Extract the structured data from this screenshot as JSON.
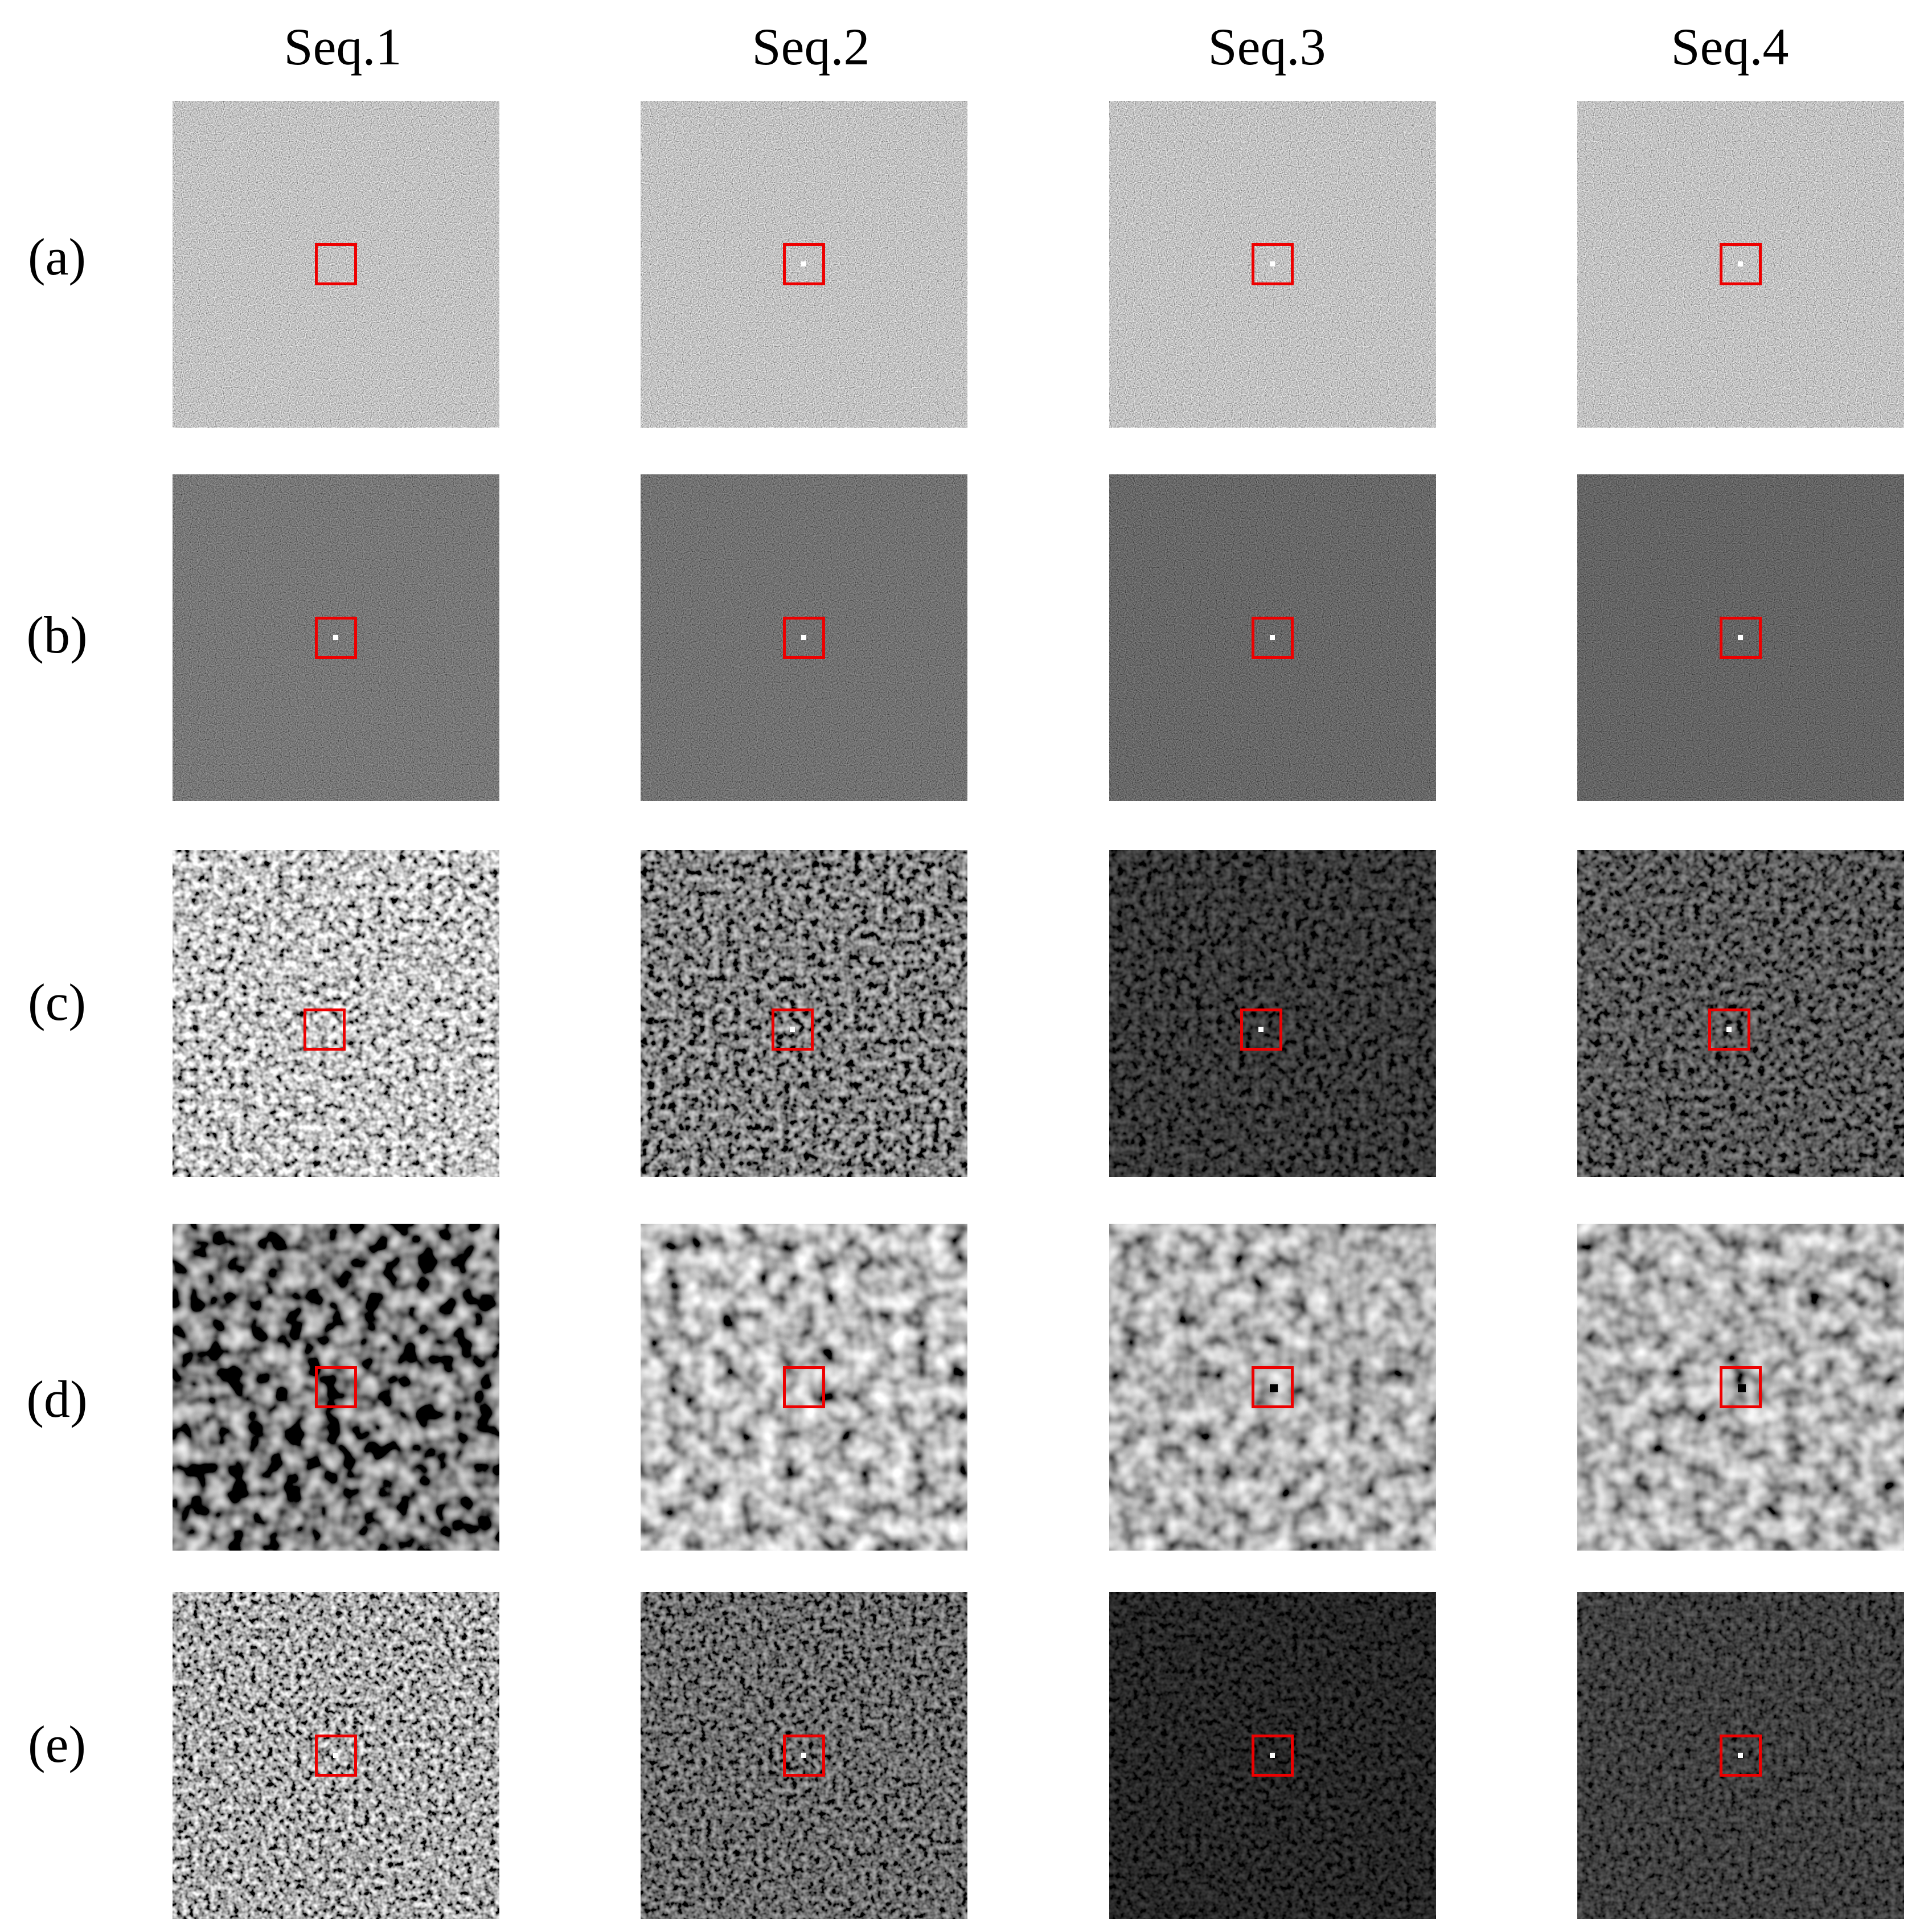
{
  "columns": [
    "Seq.1",
    "Seq.2",
    "Seq.3",
    "Seq.4"
  ],
  "rows": [
    "(a)",
    "(b)",
    "(c)",
    "(d)",
    "(e)"
  ]
}
